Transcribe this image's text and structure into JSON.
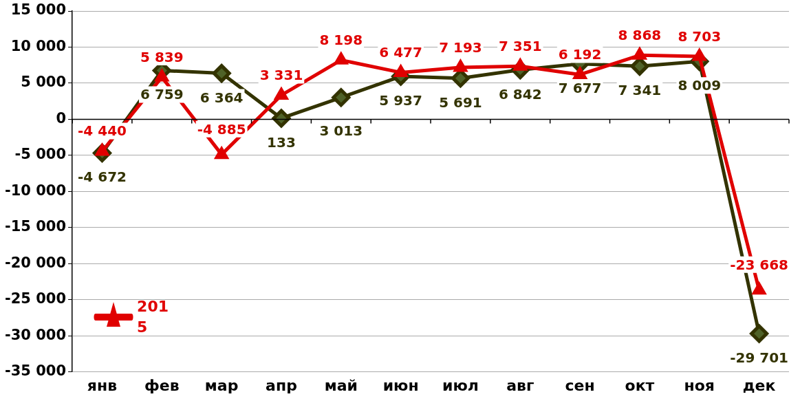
{
  "chart_data": {
    "type": "line",
    "categories": [
      "янв",
      "фев",
      "мар",
      "апр",
      "май",
      "июн",
      "июл",
      "авг",
      "сен",
      "окт",
      "ноя",
      "дек"
    ],
    "series": [
      {
        "name": "2015",
        "color": "#e00000",
        "marker": "triangle",
        "values": [
          -4440,
          5839,
          -4885,
          3331,
          8198,
          6477,
          7193,
          7351,
          6192,
          8868,
          8703,
          -23668
        ],
        "value_labels": [
          "-4 440",
          "5 839",
          "-4 885",
          "3 331",
          "8 198",
          "6 477",
          "7 193",
          "7 351",
          "6 192",
          "8 868",
          "8 703",
          "-23 668"
        ]
      },
      {
        "color": "#333300",
        "marker": "diamond",
        "values": [
          -4672,
          6759,
          6364,
          133,
          3013,
          5937,
          5691,
          6842,
          7677,
          7341,
          8009,
          -29701
        ],
        "value_labels": [
          "-4 672",
          "6 759",
          "6 364",
          "133",
          "3 013",
          "5 937",
          "5 691",
          "6 842",
          "7 677",
          "7 341",
          "8 009",
          "-29 701"
        ]
      }
    ],
    "ylim": [
      -35000,
      15000
    ],
    "yticks": [
      {
        "value": -35000,
        "label": "-35 000"
      },
      {
        "value": -30000,
        "label": "-30 000"
      },
      {
        "value": -25000,
        "label": "-25 000"
      },
      {
        "value": -20000,
        "label": "-20 000"
      },
      {
        "value": -15000,
        "label": "-15 000"
      },
      {
        "value": -10000,
        "label": "-10 000"
      },
      {
        "value": -5000,
        "label": "-5 000"
      },
      {
        "value": 0,
        "label": "0"
      },
      {
        "value": 5000,
        "label": "5 000"
      },
      {
        "value": 10000,
        "label": "10 000"
      },
      {
        "value": 15000,
        "label": "15 000"
      }
    ],
    "grid": "y",
    "legend": "bottom left",
    "line_style": "solid"
  }
}
